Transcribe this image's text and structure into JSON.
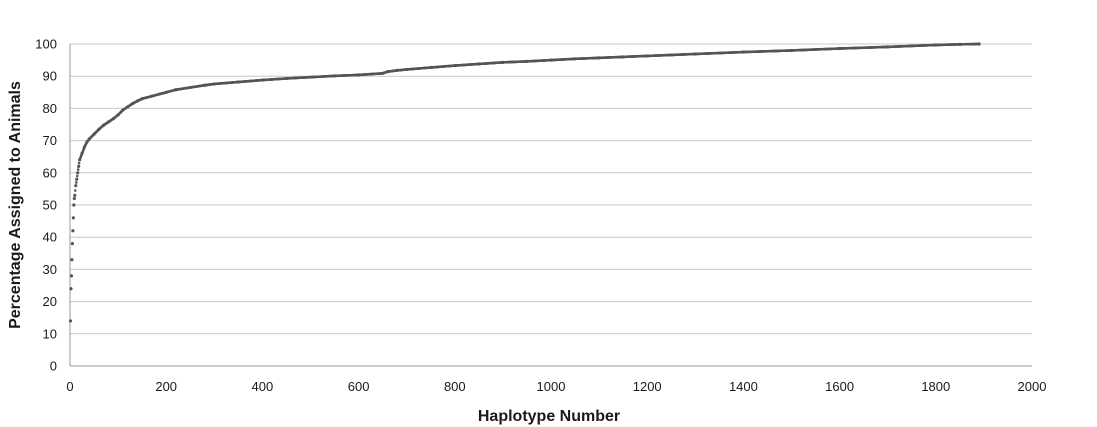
{
  "chart_data": {
    "type": "scatter",
    "title": "",
    "xlabel": "Haplotype Number",
    "ylabel": "Percentage Assigned to Animals",
    "xlim": [
      0,
      2000
    ],
    "ylim": [
      0,
      100
    ],
    "xticks": [
      0,
      200,
      400,
      600,
      800,
      1000,
      1200,
      1400,
      1600,
      1800,
      2000
    ],
    "yticks": [
      0,
      10,
      20,
      30,
      40,
      50,
      60,
      70,
      80,
      90,
      100
    ],
    "grid": "horizontal",
    "legend": "none",
    "point_color": "#555555",
    "series": [
      {
        "x": [
          1,
          2,
          3,
          4,
          5,
          6,
          7,
          8,
          9,
          10,
          12,
          14,
          16,
          18,
          20,
          25,
          30,
          35,
          40,
          50,
          60,
          70,
          80,
          90,
          100,
          110,
          120,
          130,
          140,
          150,
          170,
          200,
          220,
          250,
          280,
          300,
          350,
          400,
          450,
          500,
          550,
          600,
          650,
          660,
          680,
          700,
          750,
          800,
          850,
          900,
          950,
          1000,
          1050,
          1100,
          1150,
          1200,
          1300,
          1400,
          1500,
          1600,
          1700,
          1800,
          1850,
          1890
        ],
        "y": [
          14,
          24,
          28,
          33,
          38,
          42,
          46,
          50,
          52,
          53,
          56,
          58,
          60,
          62,
          64,
          66,
          68,
          69.5,
          70.5,
          72,
          73.5,
          74.8,
          75.8,
          76.8,
          78,
          79.5,
          80.5,
          81.5,
          82.3,
          83,
          83.8,
          85,
          85.8,
          86.5,
          87.2,
          87.6,
          88.2,
          88.8,
          89.3,
          89.7,
          90.1,
          90.4,
          90.9,
          91.4,
          91.8,
          92.1,
          92.7,
          93.3,
          93.8,
          94.3,
          94.6,
          95,
          95.4,
          95.7,
          96,
          96.3,
          96.9,
          97.5,
          98,
          98.6,
          99.1,
          99.7,
          99.9,
          100
        ]
      }
    ]
  }
}
